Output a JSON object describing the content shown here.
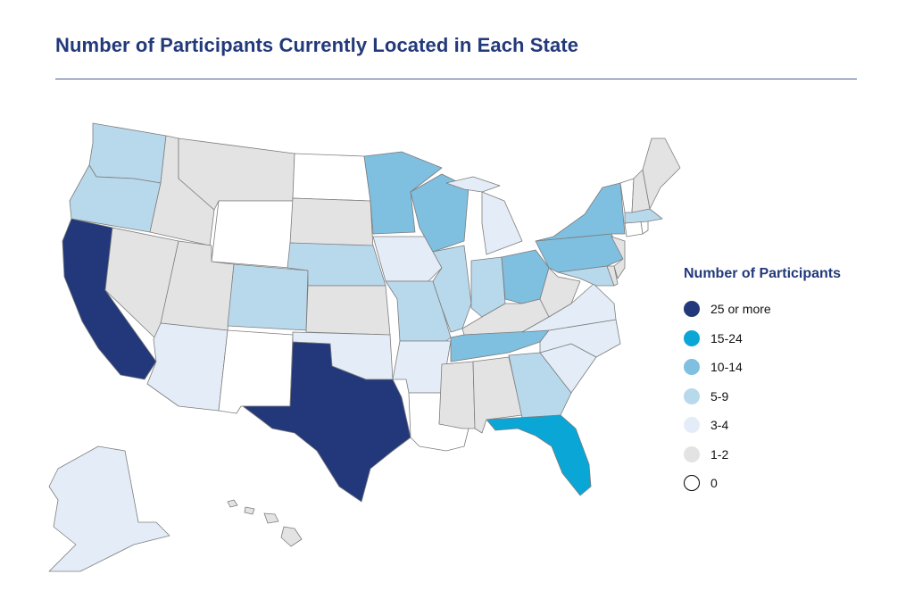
{
  "title": "Number of Participants Currently Located in Each State",
  "legend": {
    "title": "Number of Participants",
    "items": [
      {
        "label": "25 or more",
        "color": "#22387a"
      },
      {
        "label": "15-24",
        "color": "#0aa6d6"
      },
      {
        "label": "10-14",
        "color": "#7fbfe0"
      },
      {
        "label": "5-9",
        "color": "#b8d9ec"
      },
      {
        "label": "3-4",
        "color": "#e4edf7"
      },
      {
        "label": "1-2",
        "color": "#e3e3e3"
      },
      {
        "label": "0",
        "color": "#ffffff"
      }
    ]
  },
  "states": {
    "WA": "5-9",
    "OR": "5-9",
    "CA": "25 or more",
    "ID": "1-2",
    "NV": "1-2",
    "MT": "1-2",
    "WY": "0",
    "UT": "1-2",
    "AZ": "3-4",
    "CO": "5-9",
    "NM": "0",
    "ND": "0",
    "SD": "1-2",
    "NE": "5-9",
    "KS": "1-2",
    "OK": "3-4",
    "TX": "25 or more",
    "MN": "10-14",
    "IA": "3-4",
    "MO": "5-9",
    "AR": "3-4",
    "LA": "0",
    "WI": "10-14",
    "IL": "5-9",
    "MI": "3-4",
    "IN": "5-9",
    "OH": "10-14",
    "KY": "1-2",
    "TN": "10-14",
    "MS": "1-2",
    "AL": "1-2",
    "GA": "5-9",
    "FL": "15-24",
    "SC": "3-4",
    "NC": "3-4",
    "VA": "3-4",
    "WV": "1-2",
    "MD": "5-9",
    "DE": "1-2",
    "PA": "10-14",
    "NJ": "1-2",
    "NY": "10-14",
    "CT": "0",
    "RI": "0",
    "MA": "5-9",
    "VT": "0",
    "NH": "1-2",
    "ME": "1-2",
    "AK": "3-4",
    "HI": "1-2"
  }
}
